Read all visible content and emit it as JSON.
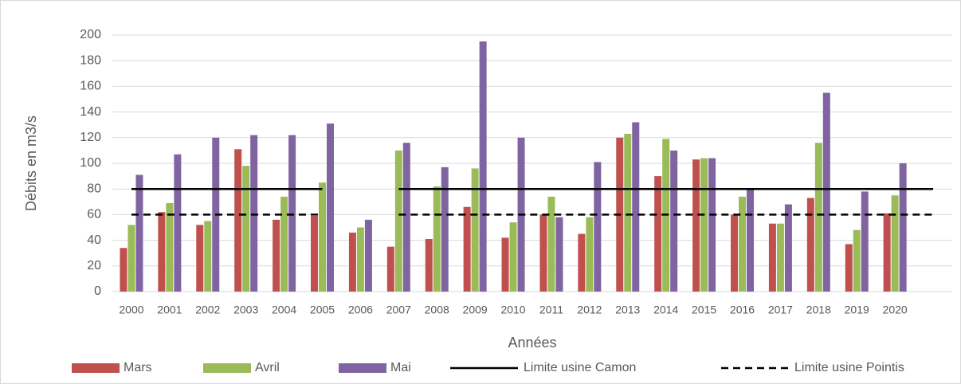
{
  "chart_data": {
    "type": "bar",
    "y_label": "Débits en m3/s",
    "x_label": "Années",
    "categories": [
      "2000",
      "2001",
      "2002",
      "2003",
      "2004",
      "2005",
      "2006",
      "2007",
      "2008",
      "2009",
      "2010",
      "2011",
      "2012",
      "2013",
      "2014",
      "2015",
      "2016",
      "2017",
      "2018",
      "2019",
      "2020",
      null
    ],
    "series": [
      {
        "name": "Mars",
        "color": "#c0504d",
        "kind": "bar",
        "values": [
          34,
          62,
          52,
          111,
          56,
          59,
          46,
          35,
          41,
          66,
          42,
          60,
          45,
          120,
          90,
          103,
          60,
          53,
          73,
          37,
          61,
          null
        ]
      },
      {
        "name": "Avril",
        "color": "#9bbb59",
        "kind": "bar",
        "values": [
          52,
          69,
          55,
          98,
          74,
          85,
          50,
          110,
          82,
          96,
          54,
          74,
          58,
          123,
          119,
          104,
          74,
          53,
          116,
          48,
          75,
          null
        ]
      },
      {
        "name": "Mai",
        "color": "#8064a2",
        "kind": "bar",
        "values": [
          91,
          107,
          120,
          122,
          122,
          131,
          56,
          116,
          97,
          195,
          120,
          58,
          101,
          132,
          110,
          104,
          80,
          68,
          155,
          78,
          100,
          null
        ]
      },
      {
        "name": "Limite usine Camon",
        "color": "#000000",
        "kind": "line",
        "dash": false,
        "values": [
          80,
          80,
          80,
          80,
          80,
          80,
          null,
          80,
          80,
          80,
          80,
          80,
          80,
          80,
          80,
          80,
          80,
          80,
          80,
          80,
          80,
          80
        ]
      },
      {
        "name": "Limite usine Pointis",
        "color": "#000000",
        "kind": "line",
        "dash": true,
        "values": [
          60,
          60,
          60,
          60,
          60,
          60,
          null,
          60,
          60,
          60,
          60,
          60,
          60,
          60,
          60,
          60,
          60,
          60,
          60,
          60,
          60,
          60
        ]
      }
    ],
    "ylim": [
      0,
      200
    ],
    "yticks": [
      0,
      20,
      40,
      60,
      80,
      100,
      120,
      140,
      160,
      180,
      200
    ],
    "grid": true,
    "legend": "bottom"
  }
}
